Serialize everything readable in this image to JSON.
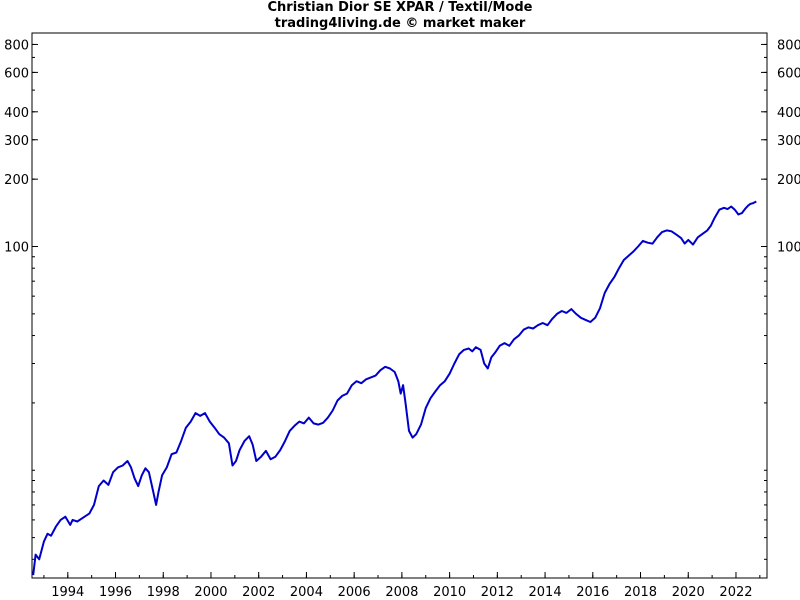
{
  "chart_data": {
    "type": "line",
    "title": "Christian Dior SE XPAR / Textil/Mode",
    "subtitle": "trading4living.de © market maker",
    "xlabel": "",
    "ylabel": "",
    "y_scale": "log",
    "ylim": [
      3.3,
      900
    ],
    "xlim": [
      1992.5,
      2023.3
    ],
    "grid": false,
    "x_ticks": [
      1994,
      1996,
      1998,
      2000,
      2002,
      2004,
      2006,
      2008,
      2010,
      2012,
      2014,
      2016,
      2018,
      2020,
      2022
    ],
    "y_ticks_labeled": [
      100,
      200,
      300,
      400,
      600,
      800
    ],
    "series": [
      {
        "color": "#0000cc",
        "points": [
          [
            1992.55,
            3.4
          ],
          [
            1992.65,
            4.2
          ],
          [
            1992.8,
            4.0
          ],
          [
            1993.0,
            4.8
          ],
          [
            1993.15,
            5.2
          ],
          [
            1993.3,
            5.1
          ],
          [
            1993.5,
            5.6
          ],
          [
            1993.7,
            6.0
          ],
          [
            1993.9,
            6.2
          ],
          [
            1994.1,
            5.7
          ],
          [
            1994.2,
            6.0
          ],
          [
            1994.4,
            5.9
          ],
          [
            1994.6,
            6.1
          ],
          [
            1994.9,
            6.4
          ],
          [
            1995.1,
            7.0
          ],
          [
            1995.3,
            8.5
          ],
          [
            1995.5,
            9.0
          ],
          [
            1995.7,
            8.6
          ],
          [
            1995.9,
            9.8
          ],
          [
            1996.1,
            10.3
          ],
          [
            1996.3,
            10.5
          ],
          [
            1996.5,
            11.0
          ],
          [
            1996.65,
            10.3
          ],
          [
            1996.8,
            9.2
          ],
          [
            1996.95,
            8.5
          ],
          [
            1997.1,
            9.5
          ],
          [
            1997.25,
            10.2
          ],
          [
            1997.4,
            9.8
          ],
          [
            1997.55,
            8.3
          ],
          [
            1997.7,
            7.0
          ],
          [
            1997.8,
            8.0
          ],
          [
            1997.95,
            9.5
          ],
          [
            1998.15,
            10.3
          ],
          [
            1998.35,
            11.8
          ],
          [
            1998.55,
            12.0
          ],
          [
            1998.75,
            13.5
          ],
          [
            1998.95,
            15.5
          ],
          [
            1999.15,
            16.5
          ],
          [
            1999.35,
            18.0
          ],
          [
            1999.55,
            17.5
          ],
          [
            1999.75,
            18.0
          ],
          [
            1999.95,
            16.5
          ],
          [
            2000.15,
            15.5
          ],
          [
            2000.35,
            14.5
          ],
          [
            2000.55,
            14.0
          ],
          [
            2000.75,
            13.2
          ],
          [
            2000.9,
            10.5
          ],
          [
            2001.05,
            11.0
          ],
          [
            2001.2,
            12.3
          ],
          [
            2001.4,
            13.5
          ],
          [
            2001.6,
            14.2
          ],
          [
            2001.75,
            13.0
          ],
          [
            2001.9,
            11.0
          ],
          [
            2002.1,
            11.5
          ],
          [
            2002.3,
            12.2
          ],
          [
            2002.5,
            11.2
          ],
          [
            2002.7,
            11.5
          ],
          [
            2002.9,
            12.3
          ],
          [
            2003.1,
            13.5
          ],
          [
            2003.3,
            15.0
          ],
          [
            2003.5,
            15.8
          ],
          [
            2003.7,
            16.5
          ],
          [
            2003.9,
            16.2
          ],
          [
            2004.1,
            17.2
          ],
          [
            2004.3,
            16.2
          ],
          [
            2004.5,
            16.0
          ],
          [
            2004.7,
            16.3
          ],
          [
            2004.9,
            17.2
          ],
          [
            2005.1,
            18.5
          ],
          [
            2005.3,
            20.5
          ],
          [
            2005.5,
            21.5
          ],
          [
            2005.7,
            22.0
          ],
          [
            2005.9,
            24.0
          ],
          [
            2006.1,
            25.0
          ],
          [
            2006.3,
            24.5
          ],
          [
            2006.5,
            25.5
          ],
          [
            2006.7,
            26.0
          ],
          [
            2006.9,
            26.5
          ],
          [
            2007.1,
            28.0
          ],
          [
            2007.3,
            29.0
          ],
          [
            2007.5,
            28.5
          ],
          [
            2007.7,
            27.5
          ],
          [
            2007.85,
            25.0
          ],
          [
            2007.95,
            22.0
          ],
          [
            2008.05,
            24.0
          ],
          [
            2008.15,
            20.0
          ],
          [
            2008.3,
            15.0
          ],
          [
            2008.45,
            14.0
          ],
          [
            2008.6,
            14.5
          ],
          [
            2008.8,
            16.0
          ],
          [
            2009.0,
            19.0
          ],
          [
            2009.2,
            21.0
          ],
          [
            2009.4,
            22.5
          ],
          [
            2009.6,
            24.0
          ],
          [
            2009.8,
            25.0
          ],
          [
            2010.0,
            27.0
          ],
          [
            2010.2,
            30.0
          ],
          [
            2010.4,
            33.0
          ],
          [
            2010.6,
            34.5
          ],
          [
            2010.8,
            35.0
          ],
          [
            2010.95,
            34.0
          ],
          [
            2011.1,
            35.5
          ],
          [
            2011.3,
            34.5
          ],
          [
            2011.45,
            30.0
          ],
          [
            2011.6,
            28.5
          ],
          [
            2011.75,
            32.0
          ],
          [
            2011.9,
            33.5
          ],
          [
            2012.1,
            36.0
          ],
          [
            2012.3,
            37.0
          ],
          [
            2012.5,
            36.0
          ],
          [
            2012.7,
            38.5
          ],
          [
            2012.9,
            40.0
          ],
          [
            2013.1,
            42.5
          ],
          [
            2013.3,
            43.5
          ],
          [
            2013.5,
            43.0
          ],
          [
            2013.7,
            44.5
          ],
          [
            2013.9,
            45.5
          ],
          [
            2014.1,
            44.5
          ],
          [
            2014.3,
            47.5
          ],
          [
            2014.5,
            50.0
          ],
          [
            2014.7,
            51.5
          ],
          [
            2014.9,
            50.5
          ],
          [
            2015.1,
            52.5
          ],
          [
            2015.3,
            50.0
          ],
          [
            2015.5,
            48.0
          ],
          [
            2015.7,
            47.0
          ],
          [
            2015.9,
            46.0
          ],
          [
            2016.1,
            48.0
          ],
          [
            2016.3,
            53.0
          ],
          [
            2016.5,
            62.0
          ],
          [
            2016.7,
            68.0
          ],
          [
            2016.9,
            73.0
          ],
          [
            2017.1,
            80.0
          ],
          [
            2017.3,
            87.0
          ],
          [
            2017.5,
            91.0
          ],
          [
            2017.7,
            95.0
          ],
          [
            2017.9,
            100.0
          ],
          [
            2018.1,
            106.0
          ],
          [
            2018.3,
            104.0
          ],
          [
            2018.5,
            103.0
          ],
          [
            2018.7,
            110.0
          ],
          [
            2018.9,
            116.0
          ],
          [
            2019.1,
            118.0
          ],
          [
            2019.3,
            117.0
          ],
          [
            2019.5,
            113.0
          ],
          [
            2019.7,
            109.0
          ],
          [
            2019.85,
            103.0
          ],
          [
            2020.0,
            107.0
          ],
          [
            2020.2,
            102.0
          ],
          [
            2020.4,
            110.0
          ],
          [
            2020.6,
            114.0
          ],
          [
            2020.8,
            118.0
          ],
          [
            2020.95,
            124.0
          ],
          [
            2021.1,
            134.0
          ],
          [
            2021.3,
            146.0
          ],
          [
            2021.5,
            149.0
          ],
          [
            2021.65,
            147.0
          ],
          [
            2021.8,
            151.0
          ],
          [
            2021.95,
            146.0
          ],
          [
            2022.1,
            139.0
          ],
          [
            2022.25,
            141.0
          ],
          [
            2022.4,
            148.0
          ],
          [
            2022.5,
            152.0
          ],
          [
            2022.6,
            155.0
          ],
          [
            2022.7,
            156.0
          ],
          [
            2022.85,
            159.0
          ]
        ]
      }
    ]
  }
}
